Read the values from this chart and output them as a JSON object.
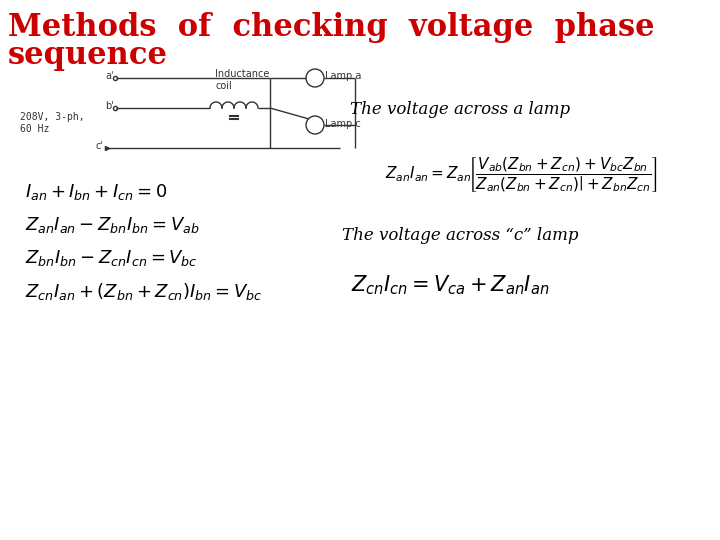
{
  "title_line1": "Methods  of  checking  voltage  phase",
  "title_line2": "sequence",
  "title_color": "#cc0000",
  "title_fontsize": 22,
  "bg_color": "#ffffff",
  "label_voltage_a": "The voltage across a lamp",
  "label_voltage_c": "The voltage across “c” lamp",
  "text_color": "#000000",
  "eq_fontsize": 15,
  "label_fontsize": 12,
  "circuit_fontsize": 7
}
